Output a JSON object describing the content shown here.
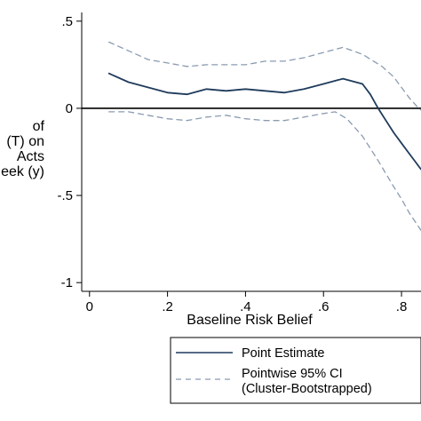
{
  "chart_data": {
    "type": "line",
    "xlabel": "Baseline Risk Belief",
    "ylabel_lines": [
      "of",
      "(T) on",
      "Acts",
      "eek (y)"
    ],
    "xlim": [
      -0.02,
      0.85
    ],
    "ylim": [
      -1.05,
      0.55
    ],
    "x_ticks": [
      0,
      0.2,
      0.4,
      0.6,
      0.8
    ],
    "x_tick_labels": [
      "0",
      ".2",
      ".4",
      ".6",
      ".8"
    ],
    "y_ticks": [
      0.5,
      0,
      -0.5,
      -1
    ],
    "y_tick_labels": [
      ".5",
      "0",
      "-.5",
      "-1"
    ],
    "reference_line_y": 0,
    "grid": false,
    "legend_position": "bottom",
    "series": [
      {
        "name": "Point Estimate",
        "style": "solid",
        "color": "#1f3b5c",
        "x": [
          0.05,
          0.1,
          0.15,
          0.2,
          0.25,
          0.3,
          0.35,
          0.4,
          0.45,
          0.5,
          0.55,
          0.6,
          0.65,
          0.7,
          0.72,
          0.74,
          0.76,
          0.78,
          0.8,
          0.82,
          0.85
        ],
        "y": [
          0.2,
          0.15,
          0.12,
          0.09,
          0.08,
          0.11,
          0.1,
          0.11,
          0.1,
          0.09,
          0.11,
          0.14,
          0.17,
          0.14,
          0.08,
          0.0,
          -0.07,
          -0.14,
          -0.2,
          -0.26,
          -0.35
        ]
      },
      {
        "name": "Pointwise 95% CI",
        "name_line2": "(Cluster-Bootstrapped)",
        "style": "dashed",
        "color": "#8a9bb0",
        "x": [
          0.05,
          0.1,
          0.15,
          0.2,
          0.25,
          0.3,
          0.35,
          0.4,
          0.45,
          0.5,
          0.55,
          0.6,
          0.65,
          0.7,
          0.75,
          0.78,
          0.8,
          0.82,
          0.84,
          0.85
        ],
        "y": [
          0.38,
          0.33,
          0.28,
          0.26,
          0.24,
          0.25,
          0.25,
          0.25,
          0.27,
          0.27,
          0.29,
          0.32,
          0.35,
          0.31,
          0.24,
          0.18,
          0.12,
          0.06,
          0.01,
          -0.01
        ]
      },
      {
        "name": "",
        "style": "dashed",
        "color": "#8a9bb0",
        "x": [
          0.05,
          0.1,
          0.15,
          0.2,
          0.25,
          0.3,
          0.35,
          0.4,
          0.45,
          0.5,
          0.55,
          0.6,
          0.63,
          0.66,
          0.7,
          0.74,
          0.78,
          0.8,
          0.82,
          0.85
        ],
        "y": [
          -0.02,
          -0.02,
          -0.04,
          -0.06,
          -0.07,
          -0.05,
          -0.04,
          -0.06,
          -0.07,
          -0.07,
          -0.05,
          -0.03,
          -0.02,
          -0.06,
          -0.16,
          -0.3,
          -0.45,
          -0.52,
          -0.6,
          -0.7
        ]
      }
    ]
  }
}
